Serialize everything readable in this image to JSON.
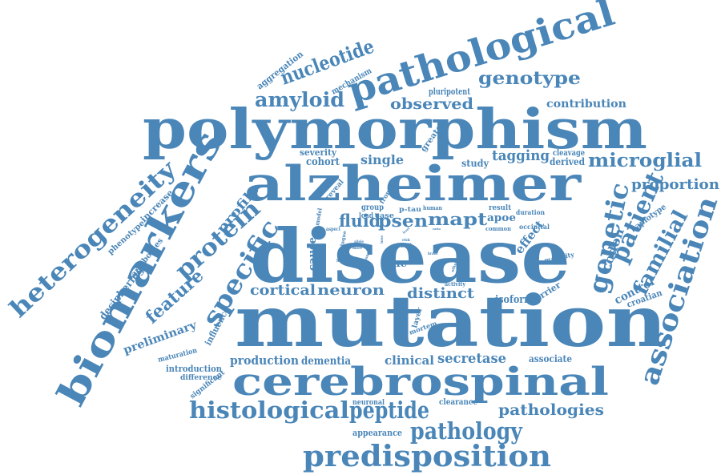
{
  "colors": {
    "ink": "#4a86b8",
    "background": "#ffffff"
  },
  "words": {
    "mutation": "mutation",
    "disease": "disease",
    "polymorphism": "polymorphism",
    "alzheimer": "alzheimer",
    "cerebrospinal": "cerebrospinal",
    "biomarkers": "biomarkers",
    "pathological": "pathological",
    "predisposition": "predisposition",
    "heterogeneity": "heterogeneity",
    "association": "association",
    "histological": "histological",
    "genetic": "genetic",
    "patient": "patient",
    "protein": "protein",
    "specific": "specific",
    "peptide": "peptide",
    "pathology": "pathology",
    "nucleotide": "nucleotide",
    "microglial": "microglial",
    "familial": "familial",
    "amyloid": "amyloid",
    "genotype": "genotype",
    "pathologies": "pathologies",
    "cortical": "cortical",
    "neuron": "neuron",
    "feature": "feature",
    "proportion": "proportion",
    "observed": "observed",
    "fluid": "fluid",
    "psen": "psen",
    "mapt": "mapt",
    "distinct": "distinct",
    "profile": "profile",
    "secretase": "secretase",
    "production": "production",
    "clinical": "clinical",
    "tagging": "tagging",
    "single": "single",
    "contribution": "contribution",
    "preliminary": "preliminary",
    "deciphering": "deciphering",
    "dementia": "dementia",
    "associate": "associate",
    "effect": "effect",
    "codon": "codon",
    "control": "control",
    "aggregation": "aggregation",
    "mechanism": "mechanism",
    "pluripotent": "pluripotent",
    "cohort": "cohort",
    "severity": "severity",
    "study": "study",
    "derived": "derived",
    "cleavage": "cleavage",
    "greater": "greater",
    "increase": "increase",
    "phenotype": "phenotype",
    "antibodies": "antibodies",
    "influence": "influence",
    "maturation": "maturation",
    "introduction": "introduction",
    "difference": "difference",
    "significant": "significant",
    "line": "line",
    "cause": "cause",
    "model": "model",
    "carrier": "carrier",
    "croatian": "croatian",
    "isoform": "isoform",
    "apoe": "apoe",
    "haplotype": "haplotype",
    "layer": "layer",
    "mortem": "mortem",
    "activity": "activity",
    "neuronal": "neuronal",
    "clearance": "clearance",
    "appearance": "appearance",
    "reveal": "reveal",
    "group": "group",
    "load": "load",
    "case": "case",
    "p_tau": "p-tau",
    "human": "human",
    "result": "result",
    "duration": "duration",
    "common": "common",
    "occipital": "occipital",
    "frontal": "frontal",
    "aspect": "aspect",
    "maturity": "maturity",
    "allele": "allele",
    "status": "status",
    "cell": "cell",
    "risk": "risk",
    "brain": "brain",
    "more": "more",
    "ratio": "ratio",
    "other": "other",
    "tissue": "tissue",
    "plaque": "plaque",
    "loss": "loss",
    "level": "level"
  }
}
